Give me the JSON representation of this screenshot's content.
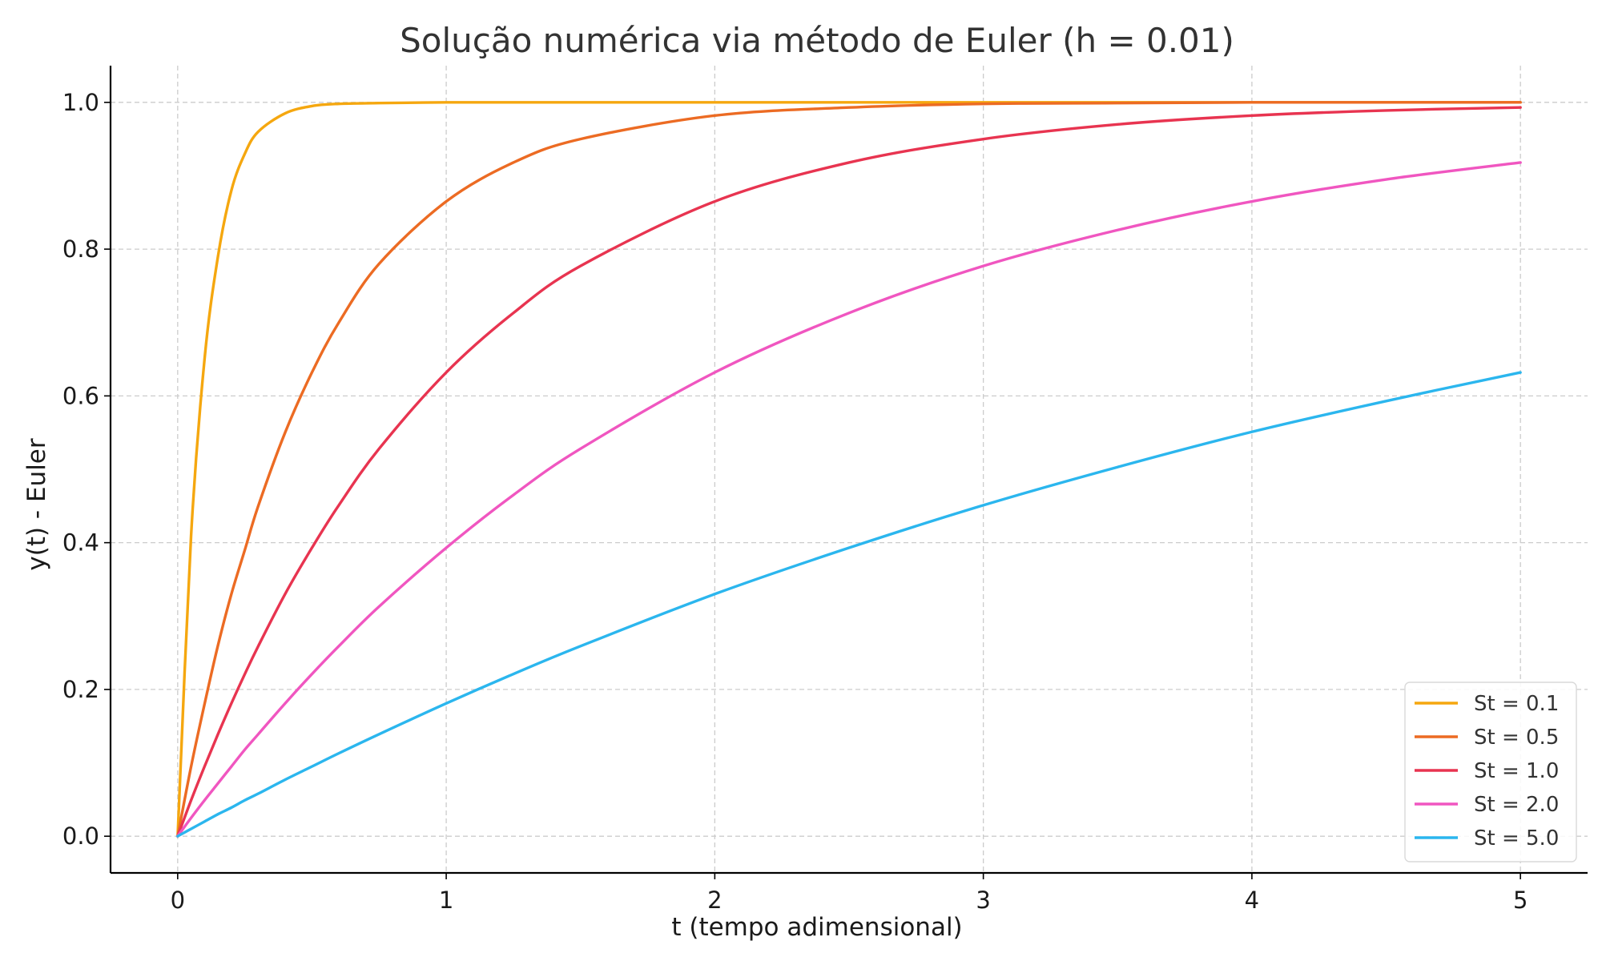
{
  "chart_data": {
    "type": "line",
    "title": "Solução numérica via método de Euler (h = 0.01)",
    "xlabel": "t (tempo adimensional)",
    "ylabel": "y(t) - Euler",
    "xlim": [
      -0.25,
      5.25
    ],
    "ylim": [
      -0.05,
      1.05
    ],
    "x_ticks": [
      0,
      1,
      2,
      3,
      4,
      5
    ],
    "x_tick_labels": [
      "0",
      "1",
      "2",
      "3",
      "4",
      "5"
    ],
    "y_ticks": [
      0.0,
      0.2,
      0.4,
      0.6,
      0.8,
      1.0
    ],
    "y_tick_labels": [
      "0.0",
      "0.2",
      "0.4",
      "0.6",
      "0.8",
      "1.0"
    ],
    "grid": true,
    "legend_position": "bottom-right",
    "x": [
      0,
      0.05,
      0.1,
      0.15,
      0.2,
      0.25,
      0.3,
      0.4,
      0.5,
      0.6,
      0.75,
      1.0,
      1.25,
      1.5,
      2.0,
      2.5,
      3.0,
      3.5,
      4.0,
      4.5,
      5.0
    ],
    "series": [
      {
        "name": "St = 0.1",
        "color": "#f5a70f",
        "values": [
          0.0,
          0.41,
          0.65,
          0.79,
          0.88,
          0.93,
          0.96,
          0.985,
          0.995,
          0.998,
          0.999,
          1.0,
          1.0,
          1.0,
          1.0,
          1.0,
          1.0,
          1.0,
          1.0,
          1.0,
          1.0
        ]
      },
      {
        "name": "St = 0.5",
        "color": "#ec6b23",
        "values": [
          0.0,
          0.095,
          0.18,
          0.26,
          0.33,
          0.39,
          0.45,
          0.55,
          0.632,
          0.7,
          0.78,
          0.865,
          0.918,
          0.95,
          0.982,
          0.993,
          0.998,
          0.999,
          1.0,
          1.0,
          1.0
        ]
      },
      {
        "name": "St = 1.0",
        "color": "#e83450",
        "values": [
          0.0,
          0.049,
          0.095,
          0.139,
          0.181,
          0.221,
          0.259,
          0.33,
          0.393,
          0.451,
          0.528,
          0.632,
          0.713,
          0.777,
          0.865,
          0.918,
          0.95,
          0.97,
          0.982,
          0.989,
          0.993
        ]
      },
      {
        "name": "St = 2.0",
        "color": "#f056c0",
        "values": [
          0.0,
          0.025,
          0.049,
          0.072,
          0.095,
          0.118,
          0.139,
          0.181,
          0.221,
          0.259,
          0.313,
          0.393,
          0.465,
          0.528,
          0.632,
          0.713,
          0.777,
          0.826,
          0.865,
          0.895,
          0.918
        ]
      },
      {
        "name": "St = 5.0",
        "color": "#2bb6ee",
        "values": [
          0.0,
          0.01,
          0.02,
          0.03,
          0.039,
          0.049,
          0.058,
          0.077,
          0.095,
          0.113,
          0.139,
          0.181,
          0.221,
          0.259,
          0.33,
          0.393,
          0.451,
          0.503,
          0.551,
          0.593,
          0.632
        ]
      }
    ]
  }
}
